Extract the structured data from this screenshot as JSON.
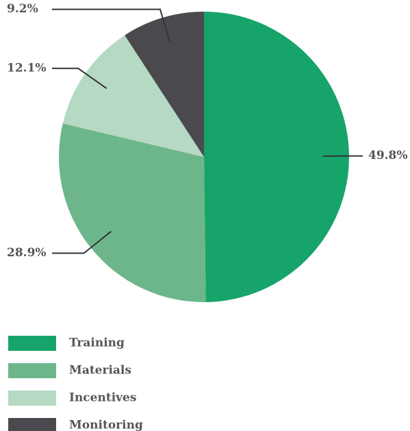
{
  "chart_data": {
    "type": "pie",
    "categories": [
      "Training",
      "Materials",
      "Incentives",
      "Monitoring"
    ],
    "values": [
      49.8,
      28.9,
      12.1,
      9.2
    ],
    "value_labels": [
      "49.8%",
      "28.9%",
      "12.1%",
      "9.2%"
    ],
    "colors": [
      "#17a46b",
      "#6db68c",
      "#b5d9c2",
      "#4a4a4e"
    ],
    "legend": "bottom-left"
  }
}
